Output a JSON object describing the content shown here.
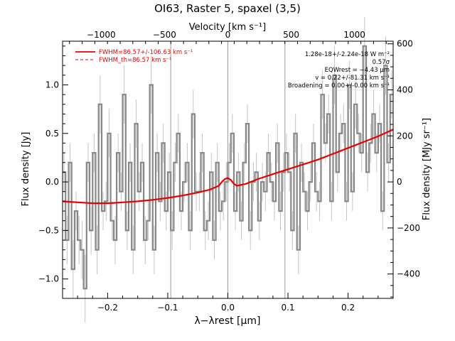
{
  "chart_data": {
    "type": "line",
    "title": "OI63, Raster 5, spaxel (3,5)",
    "xlabel": "λ−λrest [μm]",
    "ylabel": "Flux density [Jy]",
    "ylabel_right": "Flux density [MJy sr⁻¹]",
    "xlabel_top": "Velocity [km s⁻¹]",
    "xlim": [
      -0.275,
      0.275
    ],
    "ylim": [
      -1.2,
      1.45
    ],
    "x_ticks": [
      -0.2,
      -0.1,
      0.0,
      0.1,
      0.2
    ],
    "x_tick_labels": [
      "−0.2",
      "−0.1",
      "0.0",
      "0.1",
      "0.2"
    ],
    "y_ticks": [
      -1.0,
      -0.5,
      0.0,
      0.5,
      1.0
    ],
    "y_tick_labels": [
      "−1.0",
      "−0.5",
      "0.0",
      "0.5",
      "1.0"
    ],
    "top_ticks_km_s": [
      -1000,
      -500,
      0,
      500,
      1000
    ],
    "top_tick_labels": [
      "−1000",
      "−500",
      "0",
      "500",
      "1000"
    ],
    "right_ticks": [
      -400,
      -200,
      0,
      200,
      400,
      600
    ],
    "right_tick_labels": [
      "−400",
      "−200",
      "0",
      "200",
      "400",
      "600"
    ],
    "vlines": [
      -0.095,
      0.0,
      0.095
    ],
    "legend": [
      {
        "label": "FWHM=86.57+/-106.63 km s⁻¹",
        "style": "solid",
        "color": "#e60000"
      },
      {
        "label": "FWHM_th=86.57 km s⁻¹",
        "style": "dashed",
        "color": "#e60000"
      }
    ],
    "legend_position": "top-left",
    "annotations": [
      "1.28e-18+/-2.24e-18 W m⁻²",
      "0.57σ",
      "EQWrest = −4.43 μm",
      "v = 0.22+/-81.31 km s⁻¹",
      "Broadening = 0.00+/-0.00 km s⁻¹"
    ],
    "series": [
      {
        "style": "steps",
        "color": "#888888",
        "x": [
          -0.275,
          -0.27,
          -0.265,
          -0.26,
          -0.255,
          -0.25,
          -0.245,
          -0.24,
          -0.235,
          -0.23,
          -0.225,
          -0.22,
          -0.215,
          -0.21,
          -0.205,
          -0.2,
          -0.195,
          -0.19,
          -0.185,
          -0.18,
          -0.175,
          -0.17,
          -0.165,
          -0.16,
          -0.155,
          -0.15,
          -0.145,
          -0.14,
          -0.135,
          -0.13,
          -0.125,
          -0.12,
          -0.115,
          -0.11,
          -0.105,
          -0.1,
          -0.095,
          -0.09,
          -0.085,
          -0.08,
          -0.075,
          -0.07,
          -0.065,
          -0.06,
          -0.055,
          -0.05,
          -0.045,
          -0.04,
          -0.035,
          -0.03,
          -0.025,
          -0.02,
          -0.015,
          -0.01,
          -0.005,
          0.0,
          0.005,
          0.01,
          0.015,
          0.02,
          0.025,
          0.03,
          0.035,
          0.04,
          0.045,
          0.05,
          0.055,
          0.06,
          0.065,
          0.07,
          0.075,
          0.08,
          0.085,
          0.09,
          0.095,
          0.1,
          0.105,
          0.11,
          0.115,
          0.12,
          0.125,
          0.13,
          0.135,
          0.14,
          0.145,
          0.15,
          0.155,
          0.16,
          0.165,
          0.17,
          0.175,
          0.18,
          0.185,
          0.19,
          0.195,
          0.2,
          0.205,
          0.21,
          0.215,
          0.22,
          0.225,
          0.23,
          0.235,
          0.24,
          0.245,
          0.25,
          0.255,
          0.26,
          0.265,
          0.27
        ],
        "values": [
          0.1,
          -0.6,
          0.2,
          -0.9,
          -0.3,
          -0.6,
          -0.7,
          -1.1,
          0.2,
          -0.5,
          0.3,
          -0.7,
          0.8,
          -0.3,
          -0.2,
          0.5,
          -0.4,
          -0.6,
          0.3,
          -0.1,
          0.9,
          -0.5,
          0.2,
          -0.7,
          0.6,
          -0.1,
          0.2,
          -0.6,
          -0.4,
          1.0,
          -0.7,
          0.3,
          -0.2,
          0.4,
          -0.3,
          0.1,
          -0.5,
          0.2,
          0.5,
          -0.3,
          0.0,
          0.2,
          -0.5,
          0.7,
          -0.1,
          -0.1,
          0.3,
          -0.5,
          -0.4,
          0.1,
          -0.6,
          0.2,
          -0.3,
          -0.2,
          0.0,
          0.2,
          0.5,
          -0.3,
          0.1,
          -0.4,
          0.2,
          0.6,
          -0.5,
          0.0,
          0.1,
          -0.4,
          0.0,
          -0.1,
          0.3,
          0.0,
          -0.2,
          0.4,
          -0.3,
          0.1,
          0.3,
          0.1,
          -0.5,
          0.5,
          -0.7,
          0.2,
          -0.1,
          -0.3,
          0.0,
          0.4,
          -0.1,
          -0.2,
          0.9,
          0.4,
          0.7,
          -0.2,
          1.1,
          0.1,
          0.5,
          0.6,
          -0.2,
          1.0,
          -0.1,
          0.8,
          0.5,
          0.3,
          1.4,
          0.1,
          0.4,
          0.7,
          0.3,
          0.6,
          -0.3,
          1.2,
          0.2,
          0.9
        ],
        "errors": [
          0.2,
          0.25,
          0.2,
          0.3,
          0.2,
          0.25,
          0.3,
          0.35,
          0.2,
          0.25,
          0.2,
          0.25,
          0.3,
          0.2,
          0.2,
          0.25,
          0.2,
          0.25,
          0.2,
          0.2,
          0.3,
          0.2,
          0.2,
          0.25,
          0.25,
          0.2,
          0.2,
          0.25,
          0.2,
          0.3,
          0.25,
          0.2,
          0.2,
          0.2,
          0.2,
          0.2,
          0.2,
          0.2,
          0.2,
          0.2,
          0.2,
          0.2,
          0.2,
          0.25,
          0.2,
          0.2,
          0.2,
          0.2,
          0.2,
          0.2,
          0.2,
          0.2,
          0.2,
          0.2,
          0.2,
          0.2,
          0.2,
          0.2,
          0.2,
          0.2,
          0.2,
          0.2,
          0.2,
          0.2,
          0.2,
          0.2,
          0.2,
          0.2,
          0.2,
          0.2,
          0.2,
          0.2,
          0.2,
          0.2,
          0.2,
          0.2,
          0.2,
          0.2,
          0.25,
          0.2,
          0.2,
          0.2,
          0.2,
          0.2,
          0.2,
          0.2,
          0.25,
          0.2,
          0.2,
          0.2,
          0.3,
          0.2,
          0.2,
          0.2,
          0.2,
          0.25,
          0.2,
          0.25,
          0.2,
          0.2,
          0.3,
          0.2,
          0.2,
          0.25,
          0.2,
          0.2,
          0.2,
          0.3,
          0.2,
          0.25
        ]
      },
      {
        "style": "line",
        "color": "#e60000",
        "x": [
          -0.275,
          -0.25,
          -0.225,
          -0.2,
          -0.175,
          -0.15,
          -0.125,
          -0.1,
          -0.075,
          -0.05,
          -0.03,
          -0.015,
          -0.01,
          -0.005,
          0.0,
          0.005,
          0.01,
          0.015,
          0.03,
          0.05,
          0.075,
          0.1,
          0.125,
          0.15,
          0.175,
          0.2,
          0.225,
          0.25,
          0.275
        ],
        "values": [
          -0.2,
          -0.21,
          -0.22,
          -0.22,
          -0.21,
          -0.2,
          -0.185,
          -0.165,
          -0.14,
          -0.11,
          -0.08,
          -0.04,
          0.0,
          0.03,
          0.04,
          0.02,
          -0.02,
          -0.04,
          -0.02,
          0.03,
          0.08,
          0.13,
          0.18,
          0.23,
          0.29,
          0.35,
          0.41,
          0.47,
          0.54
        ]
      }
    ]
  }
}
